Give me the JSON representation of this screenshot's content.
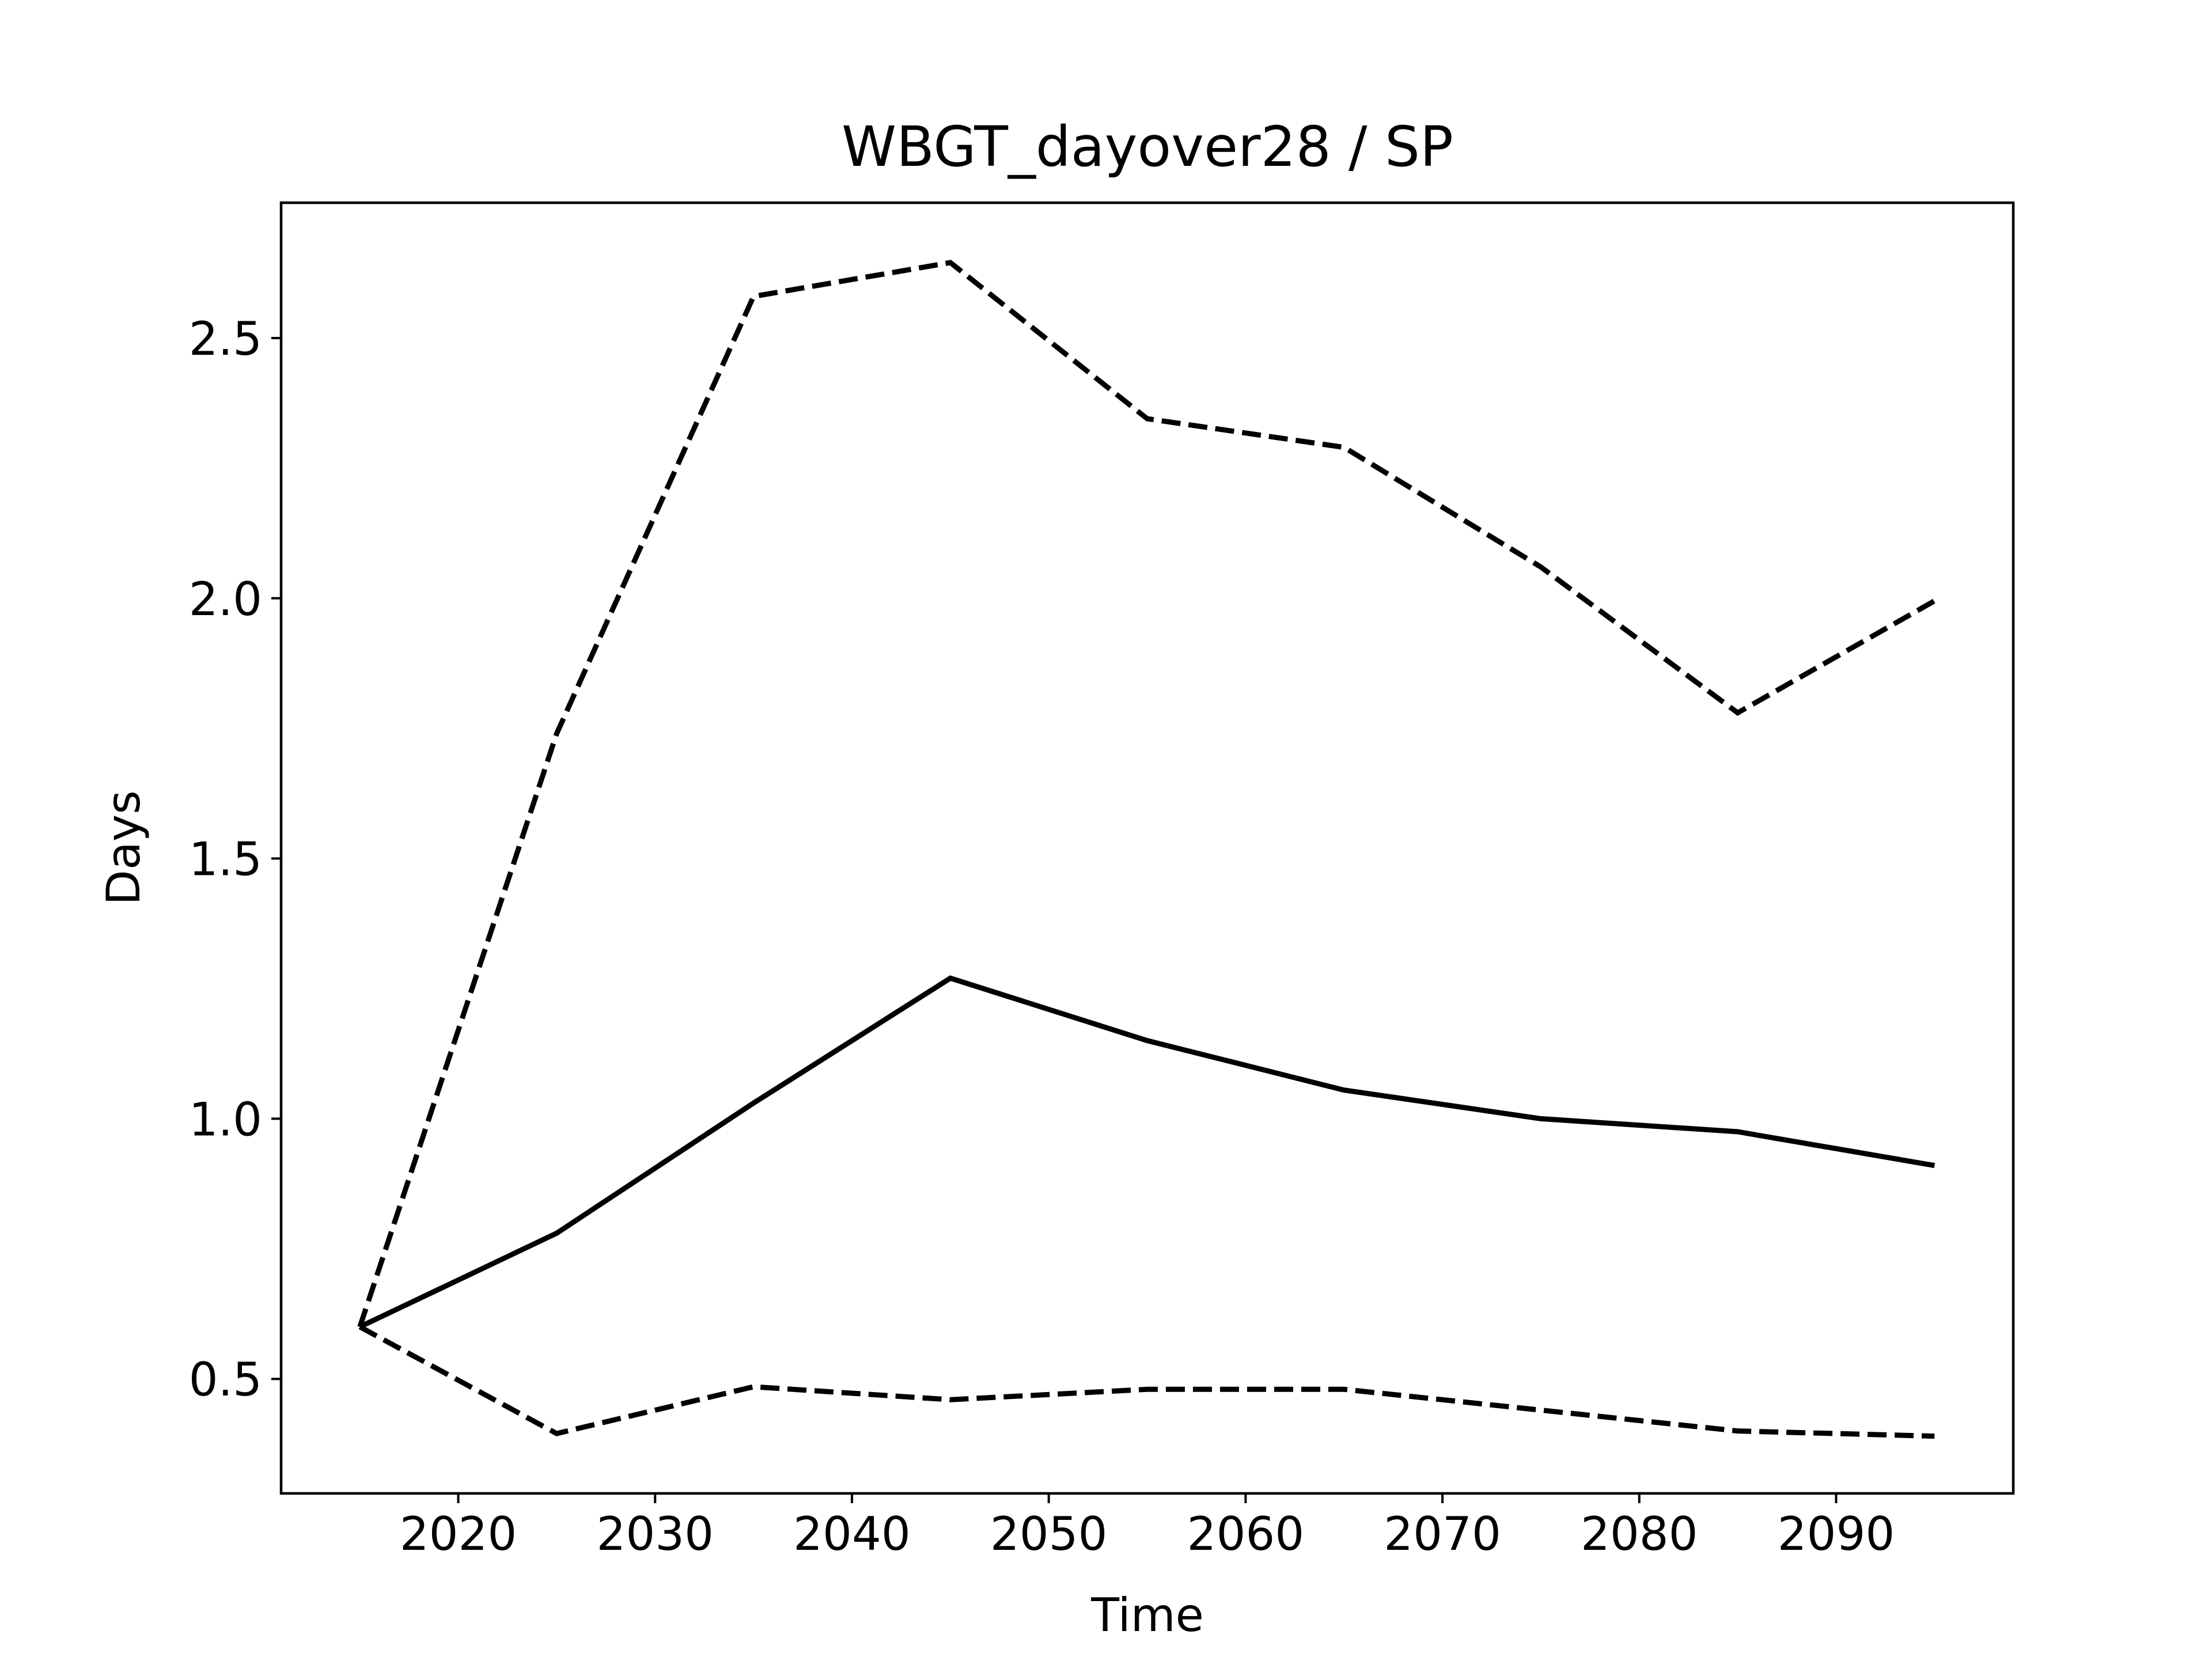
{
  "chart_data": {
    "type": "line",
    "title": "WBGT_dayover28 / SP",
    "xlabel": "Time",
    "ylabel": "Days",
    "xlim": [
      2011,
      2099
    ],
    "ylim": [
      0.28,
      2.76
    ],
    "xticks": [
      2020,
      2030,
      2040,
      2050,
      2060,
      2070,
      2080,
      2090
    ],
    "xtick_labels": [
      "2020",
      "2030",
      "2040",
      "2050",
      "2060",
      "2070",
      "2080",
      "2090"
    ],
    "yticks": [
      0.5,
      1.0,
      1.5,
      2.0,
      2.5
    ],
    "ytick_labels": [
      "0.5",
      "1.0",
      "1.5",
      "2.0",
      "2.5"
    ],
    "grid": false,
    "x": [
      2015,
      2025,
      2035,
      2045,
      2055,
      2065,
      2075,
      2085,
      2095
    ],
    "series": [
      {
        "style": "solid",
        "color": "#000000",
        "values": [
          0.6,
          0.78,
          1.03,
          1.27,
          1.15,
          1.055,
          1.0,
          0.975,
          0.91
        ]
      },
      {
        "style": "dashed",
        "color": "#000000",
        "values": [
          0.6,
          1.74,
          2.58,
          2.645,
          2.345,
          2.29,
          2.06,
          1.78,
          1.995
        ]
      },
      {
        "style": "dashed",
        "color": "#000000",
        "values": [
          0.6,
          0.395,
          0.485,
          0.46,
          0.48,
          0.48,
          0.44,
          0.4,
          0.39
        ]
      }
    ]
  }
}
